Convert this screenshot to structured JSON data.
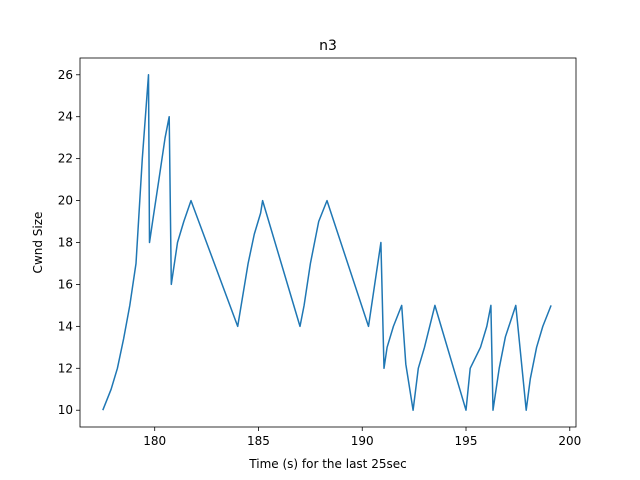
{
  "chart_data": {
    "type": "line",
    "title": "n3",
    "xlabel": "Time (s) for the last 25sec",
    "ylabel": "Cwnd Size",
    "xlim": [
      176.4,
      200.3
    ],
    "ylim": [
      9.2,
      26.8
    ],
    "xticks": [
      180,
      185,
      190,
      195,
      200
    ],
    "yticks": [
      10,
      12,
      14,
      16,
      18,
      20,
      22,
      24,
      26
    ],
    "grid": false,
    "color": "#1f77b4",
    "series": [
      {
        "x": [
          177.5,
          177.9,
          178.2,
          178.5,
          178.8,
          179.1,
          179.4,
          179.7,
          179.75,
          179.9,
          180.2,
          180.5,
          180.7,
          180.8,
          181.1,
          181.4,
          181.75,
          184.0,
          184.5,
          184.8,
          185.1,
          185.2,
          187.0,
          187.2,
          187.5,
          187.9,
          188.3,
          190.3,
          190.6,
          190.9,
          191.05,
          191.2,
          191.5,
          191.9,
          192.1,
          192.45,
          192.7,
          193.0,
          193.5,
          195.0,
          195.1,
          195.2,
          195.7,
          196.0,
          196.2,
          196.3,
          196.6,
          196.9,
          197.4,
          197.9,
          198.1,
          198.4,
          198.7,
          199.1
        ],
        "y": [
          10,
          11,
          12,
          13.4,
          15,
          17,
          22,
          26,
          18,
          19,
          21,
          23,
          24,
          16,
          18,
          19,
          20,
          14,
          17,
          18.4,
          19.4,
          20,
          14,
          15,
          17,
          19,
          20,
          14,
          16,
          18,
          12,
          13,
          14,
          15,
          12.2,
          10,
          12,
          13,
          15,
          10,
          11,
          12,
          13,
          14,
          15,
          10,
          12,
          13.5,
          15,
          10,
          11.5,
          13,
          14,
          15
        ]
      }
    ]
  }
}
